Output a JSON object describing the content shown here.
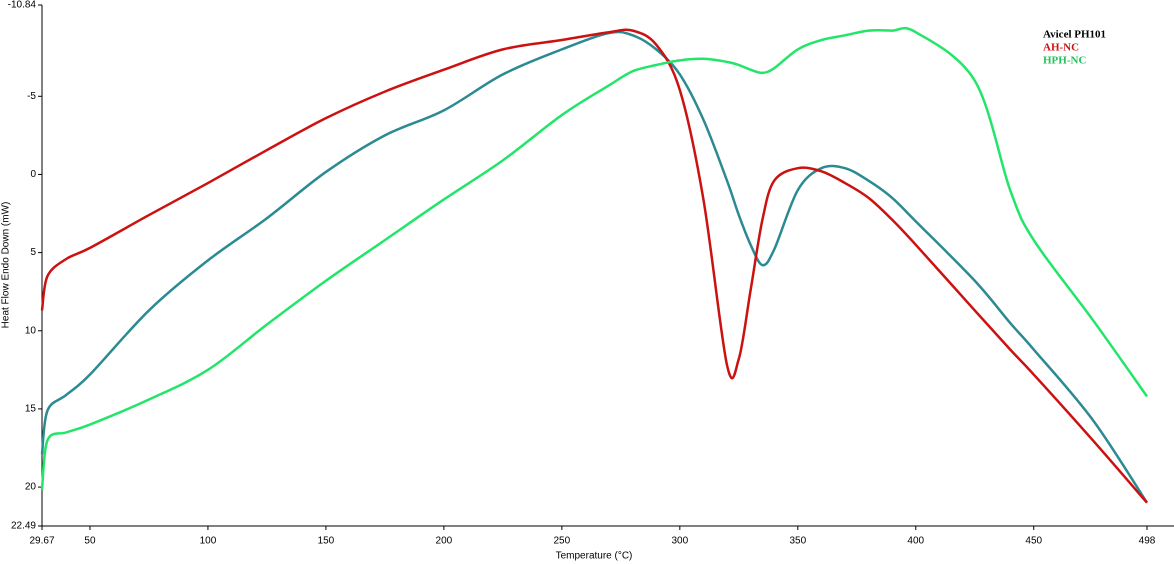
{
  "chart_data": {
    "type": "line",
    "x_label": "Temperature (°C)",
    "y_label": "Heat Flow Endo Down (mW)",
    "x": [
      29.67,
      32,
      40,
      50,
      75,
      100,
      125,
      150,
      175,
      200,
      225,
      250,
      270,
      280,
      290,
      300,
      310,
      320,
      325,
      330,
      335,
      340,
      350,
      360,
      370,
      380,
      390,
      400,
      425,
      440,
      450,
      475,
      498
    ],
    "series": [
      {
        "name": "Avicel PH101",
        "color": "#2b8a92",
        "label_color": "#000000",
        "values": [
          17.9,
          15.1,
          14.1,
          12.8,
          8.7,
          5.5,
          2.8,
          -0.16,
          -2.5,
          -4.1,
          -6.4,
          -8.0,
          -9.05,
          -8.9,
          -8.0,
          -6.4,
          -3.5,
          0.4,
          2.6,
          4.5,
          5.8,
          4.8,
          1.0,
          -0.4,
          -0.4,
          0.4,
          1.5,
          3.0,
          6.8,
          9.5,
          11.2,
          15.7,
          21.0
        ]
      },
      {
        "name": "AH-NC",
        "color": "#cc1111",
        "label_color": "#cc1111",
        "values": [
          8.7,
          6.5,
          5.4,
          4.7,
          2.6,
          0.55,
          -1.56,
          -3.6,
          -5.3,
          -6.7,
          -8.0,
          -8.6,
          -9.1,
          -9.2,
          -8.3,
          -5.4,
          1.6,
          12.2,
          11.8,
          7.4,
          2.9,
          0.4,
          -0.4,
          -0.2,
          0.55,
          1.5,
          2.9,
          4.5,
          8.7,
          11.2,
          12.8,
          17.0,
          21.0
        ]
      },
      {
        "name": "HPH-NC",
        "color": "#22e56a",
        "label_color": "#22c35a",
        "values": [
          20.2,
          17.0,
          16.5,
          16.0,
          14.4,
          12.5,
          9.6,
          6.8,
          4.2,
          1.6,
          -0.9,
          -3.8,
          -5.7,
          -6.6,
          -7.0,
          -7.3,
          -7.4,
          -7.2,
          -7.0,
          -6.7,
          -6.5,
          -6.8,
          -8.0,
          -8.6,
          -8.9,
          -9.2,
          -9.2,
          -9.1,
          -6.0,
          1.0,
          4.2,
          9.3,
          14.2
        ]
      }
    ],
    "xlim": [
      29.67,
      498
    ],
    "xticks": [
      29.67,
      50,
      100,
      150,
      200,
      250,
      300,
      350,
      400,
      450,
      498
    ],
    "ylim": [
      -10.84,
      22.49
    ],
    "y_reversed": true,
    "yticks": [
      -10.84,
      -5,
      0,
      5,
      10,
      15,
      20,
      22.49
    ],
    "grid": false,
    "legend": "upper right"
  }
}
